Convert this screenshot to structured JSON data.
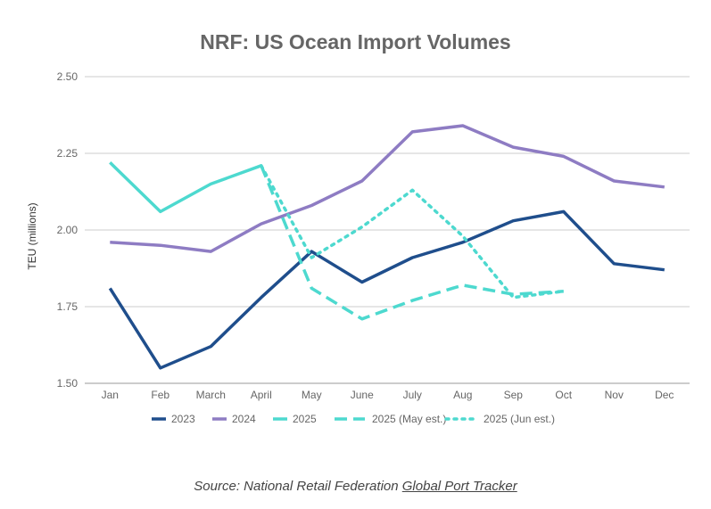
{
  "chart_data": {
    "type": "line",
    "title": "NRF: US Ocean Import Volumes",
    "xlabel": "",
    "ylabel": "TEU (millions)",
    "ylim": [
      1.5,
      2.5
    ],
    "yticks": [
      "1.50",
      "1.75",
      "2.00",
      "2.25",
      "2.50"
    ],
    "grid": true,
    "legend_position": "bottom",
    "categories": [
      "Jan",
      "Feb",
      "March",
      "April",
      "May",
      "June",
      "July",
      "Aug",
      "Sep",
      "Oct",
      "Nov",
      "Dec"
    ],
    "series": [
      {
        "name": "2023",
        "color": "#1f4e8c",
        "style": "solid",
        "values": [
          1.81,
          1.55,
          1.62,
          1.78,
          1.93,
          1.83,
          1.91,
          1.96,
          2.03,
          2.06,
          1.89,
          1.87
        ]
      },
      {
        "name": "2024",
        "color": "#8e7cc3",
        "style": "solid",
        "values": [
          1.96,
          1.95,
          1.93,
          2.02,
          2.08,
          2.16,
          2.32,
          2.34,
          2.27,
          2.24,
          2.16,
          2.14
        ]
      },
      {
        "name": "2025",
        "color": "#4dd9cf",
        "style": "solid",
        "values": [
          2.22,
          2.06,
          2.15,
          2.21,
          null,
          null,
          null,
          null,
          null,
          null,
          null,
          null
        ]
      },
      {
        "name": "2025 (May est.)",
        "color": "#4dd9cf",
        "style": "dashed",
        "values": [
          null,
          null,
          null,
          2.21,
          1.81,
          1.71,
          1.77,
          1.82,
          1.79,
          1.8,
          null,
          null
        ]
      },
      {
        "name": "2025 (Jun est.)",
        "color": "#4dd9cf",
        "style": "dotted",
        "values": [
          null,
          null,
          null,
          2.21,
          1.91,
          2.01,
          2.13,
          1.98,
          1.78,
          1.8,
          null,
          null
        ]
      }
    ]
  },
  "source": {
    "prefix": "Source: National Retail Federation ",
    "link_text": "Global Port Tracker"
  }
}
